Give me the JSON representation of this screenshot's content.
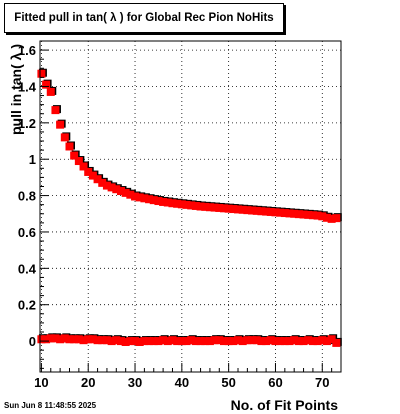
{
  "timestamp": "Sun Jun  8 11:48:55 2025",
  "chart_data": {
    "type": "scatter",
    "title": "Fitted pull in tan( λ ) for Global Rec Pion NoHits",
    "xlabel": "No. of Fit Points",
    "ylabel": "pull in tan( λ )",
    "xlim": [
      9.7,
      74
    ],
    "ylim": [
      -0.17,
      1.65
    ],
    "x_ticks": [
      10,
      20,
      30,
      40,
      50,
      60,
      70
    ],
    "y_ticks": [
      0,
      0.2,
      0.4,
      0.6,
      0.8,
      1,
      1.2,
      1.4,
      1.6
    ],
    "y_tick_labels": [
      "0",
      "0.2",
      "0.4",
      "0.6",
      "0.8",
      "1",
      "1.2",
      "1.4",
      "1.6"
    ],
    "grid": true,
    "marker": "square",
    "colors": {
      "primary": "#ff0000",
      "shadow": "#000000"
    },
    "series": [
      {
        "marker_color": "#ff0000",
        "x": [
          10,
          11,
          12,
          13,
          14,
          15,
          16,
          17,
          18,
          19,
          20,
          21,
          22,
          23,
          24,
          25,
          26,
          27,
          28,
          29,
          30,
          31,
          32,
          33,
          34,
          35,
          36,
          37,
          38,
          39,
          40,
          41,
          42,
          43,
          44,
          45,
          46,
          47,
          48,
          49,
          50,
          51,
          52,
          53,
          54,
          55,
          56,
          57,
          58,
          59,
          60,
          61,
          62,
          63,
          64,
          65,
          66,
          67,
          68,
          69,
          70,
          71,
          72,
          73
        ],
        "y": [
          1.47,
          1.41,
          1.37,
          1.27,
          1.19,
          1.12,
          1.07,
          1.02,
          0.99,
          0.96,
          0.93,
          0.91,
          0.89,
          0.87,
          0.855,
          0.845,
          0.835,
          0.825,
          0.815,
          0.805,
          0.795,
          0.79,
          0.785,
          0.78,
          0.775,
          0.77,
          0.765,
          0.762,
          0.758,
          0.755,
          0.752,
          0.749,
          0.746,
          0.743,
          0.74,
          0.738,
          0.736,
          0.734,
          0.732,
          0.73,
          0.728,
          0.726,
          0.724,
          0.722,
          0.72,
          0.718,
          0.716,
          0.714,
          0.712,
          0.71,
          0.708,
          0.706,
          0.704,
          0.702,
          0.7,
          0.698,
          0.696,
          0.694,
          0.692,
          0.69,
          0.686,
          0.678,
          0.672,
          0.676
        ]
      },
      {
        "marker_color": "#ff0000",
        "x": [
          10,
          11,
          12,
          13,
          14,
          15,
          16,
          17,
          18,
          19,
          20,
          21,
          22,
          23,
          24,
          25,
          26,
          27,
          28,
          29,
          30,
          31,
          32,
          33,
          34,
          35,
          36,
          37,
          38,
          39,
          40,
          41,
          42,
          43,
          44,
          45,
          46,
          47,
          48,
          49,
          50,
          51,
          52,
          53,
          54,
          55,
          56,
          57,
          58,
          59,
          60,
          61,
          62,
          63,
          64,
          65,
          66,
          67,
          68,
          69,
          70,
          71,
          72,
          73
        ],
        "y": [
          0.01,
          0.01,
          0.015,
          0.015,
          0.01,
          0.015,
          0.01,
          0.01,
          0.01,
          0.005,
          0.01,
          0.01,
          0.005,
          0.005,
          0.005,
          0.0,
          0.005,
          0.0,
          -0.005,
          0.0,
          0.0,
          -0.005,
          0.0,
          0.0,
          0.0,
          0.0,
          0.005,
          0.0,
          0.005,
          0.0,
          0.0,
          0.0,
          0.005,
          0.0,
          0.0,
          0.0,
          0.0,
          0.005,
          0.005,
          0.0,
          0.0,
          0.0,
          0.005,
          0.0,
          0.005,
          0.005,
          0.005,
          0.0,
          0.0,
          0.005,
          0.0,
          0.0,
          0.0,
          0.0,
          0.005,
          0.0,
          0.0,
          0.005,
          0.0,
          0.0,
          0.005,
          0.0,
          0.01,
          -0.01
        ]
      }
    ]
  }
}
